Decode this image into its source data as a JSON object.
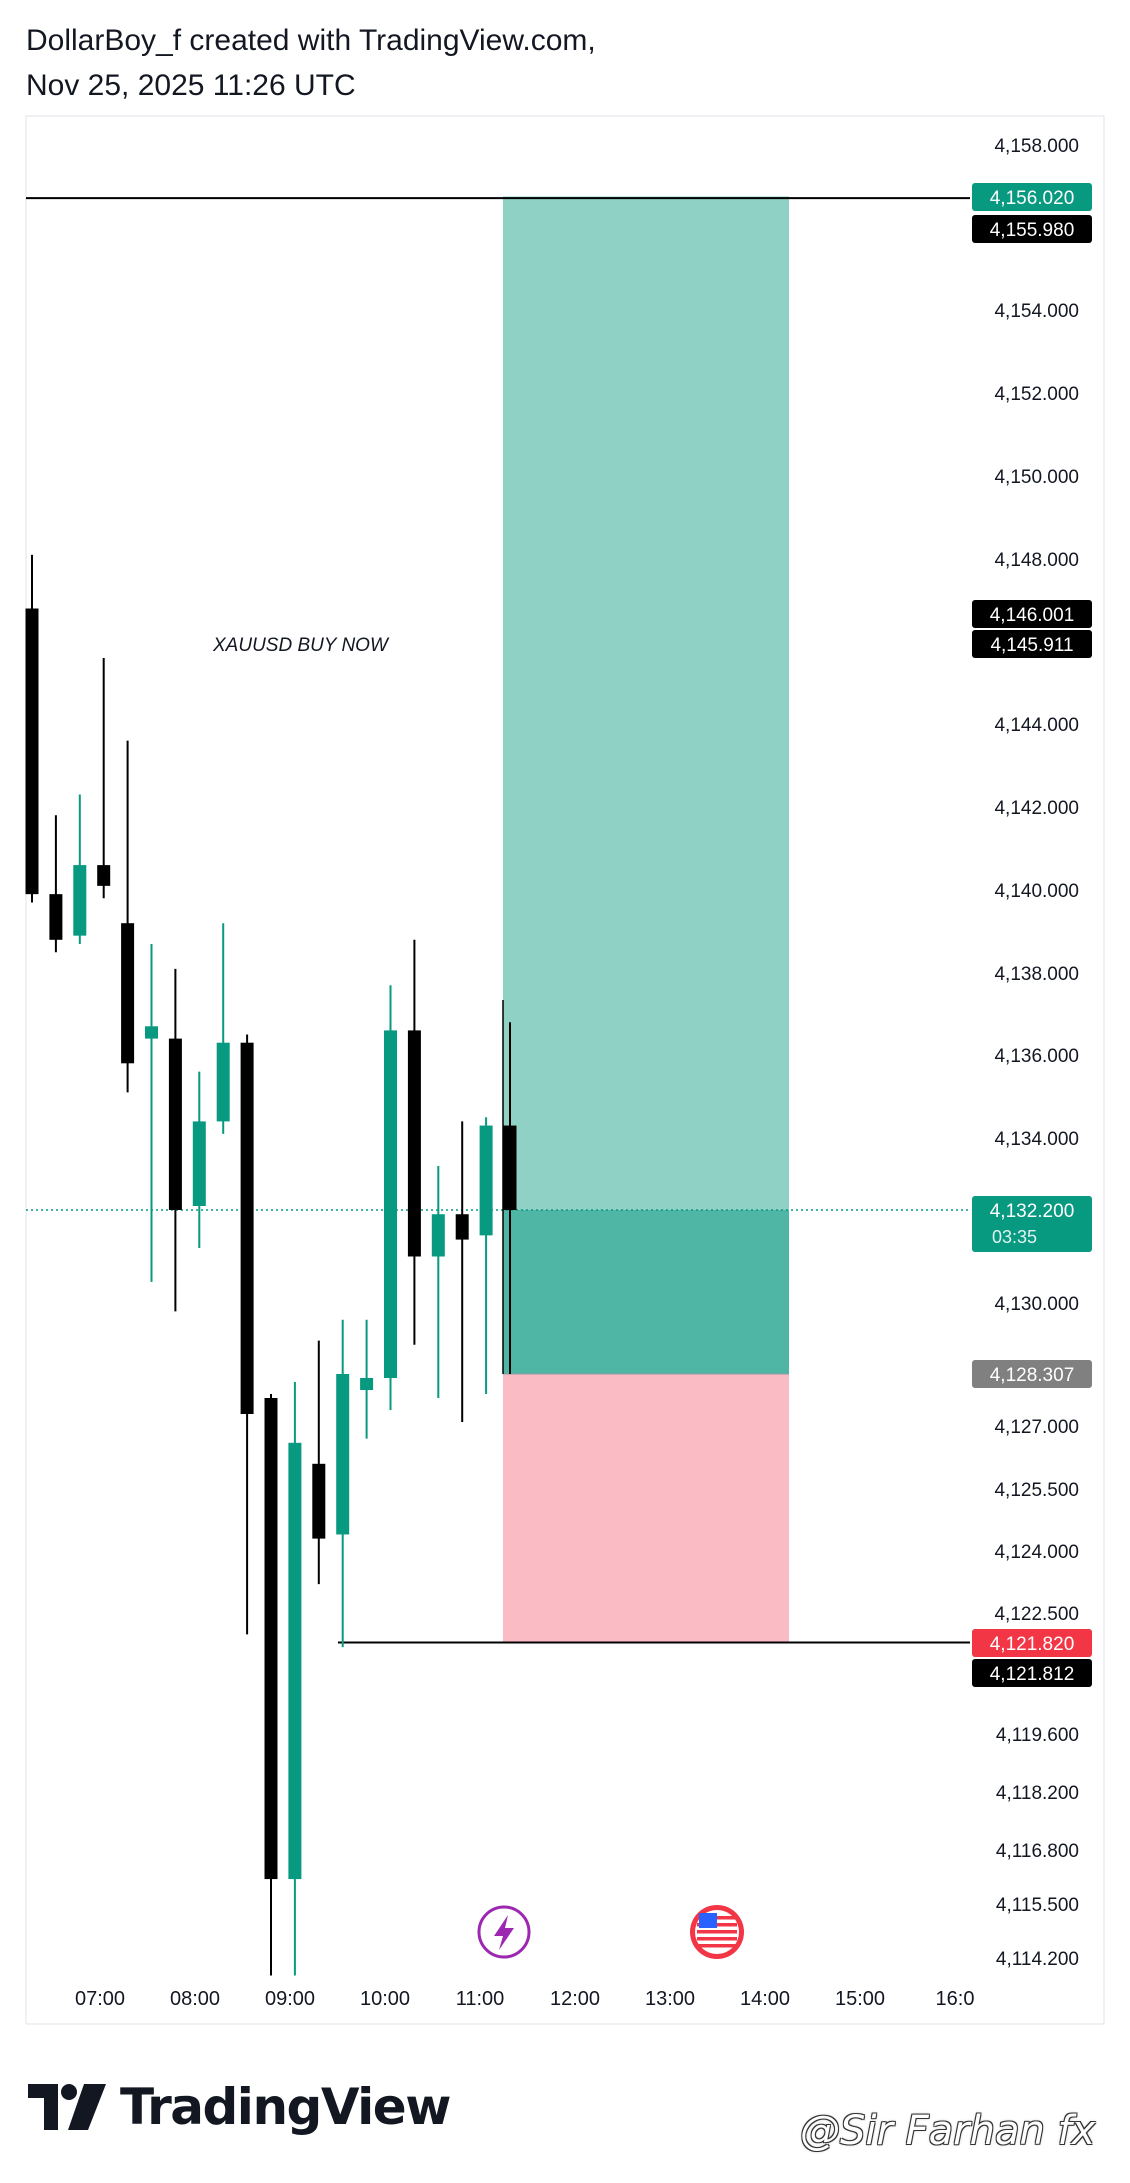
{
  "header": {
    "line1": "DollarBoy_f created with TradingView.com,",
    "line2": "Nov 25, 2025 11:26 UTC"
  },
  "footer": {
    "brand": "TradingView",
    "watermark": "@Sir Farhan fx"
  },
  "colors": {
    "up": "#089981",
    "down": "#000000",
    "profit_zone": "#8fd1c4",
    "profit_zone_dark": "#4fb5a4",
    "loss_zone": "#fbbbc4",
    "price_tag_green": "#089981",
    "price_tag_red": "#f23645",
    "price_tag_gray": "#808080",
    "price_tag_black": "#000000"
  },
  "chart_data": {
    "type": "candlestick",
    "symbol_note": "XAUUSD BUY NOW",
    "y_ticks": [
      "4,158.000",
      "4,154.000",
      "4,152.000",
      "4,150.000",
      "4,148.000",
      "4,144.000",
      "4,142.000",
      "4,140.000",
      "4,138.000",
      "4,136.000",
      "4,134.000",
      "4,130.000",
      "4,127.000",
      "4,125.500",
      "4,124.000",
      "4,122.500",
      "4,119.600",
      "4,118.200",
      "4,116.800",
      "4,115.500",
      "4,114.200"
    ],
    "x_ticks": [
      "07:00",
      "08:00",
      "09:00",
      "10:00",
      "11:00",
      "12:00",
      "13:00",
      "14:00",
      "15:00",
      "16:0"
    ],
    "candles": [
      {
        "o": 4146.2,
        "h": 4148.1,
        "l": 4139.7,
        "c": 4139.9
      },
      {
        "o": 4139.9,
        "h": 4141.8,
        "l": 4138.5,
        "c": 4138.8
      },
      {
        "o": 4138.9,
        "h": 4142.3,
        "l": 4138.7,
        "c": 4140.6
      },
      {
        "o": 4140.6,
        "h": 4145.2,
        "l": 4139.8,
        "c": 4140.1
      },
      {
        "o": 4139.2,
        "h": 4143.6,
        "l": 4135.1,
        "c": 4135.8
      },
      {
        "o": 4136.4,
        "h": 4138.7,
        "l": 4130.5,
        "c": 4136.7
      },
      {
        "o": 4136.4,
        "h": 4138.1,
        "l": 4129.8,
        "c": 4132.2
      },
      {
        "o": 4132.3,
        "h": 4135.6,
        "l": 4131.3,
        "c": 4134.4
      },
      {
        "o": 4134.4,
        "h": 4139.2,
        "l": 4134.1,
        "c": 4136.3
      },
      {
        "o": 4136.3,
        "h": 4136.5,
        "l": 4122.0,
        "c": 4127.3
      },
      {
        "o": 4127.7,
        "h": 4127.8,
        "l": 4113.7,
        "c": 4116.1
      },
      {
        "o": 4116.1,
        "h": 4128.1,
        "l": 4113.7,
        "c": 4126.6
      },
      {
        "o": 4126.1,
        "h": 4129.1,
        "l": 4123.2,
        "c": 4124.3
      },
      {
        "o": 4124.4,
        "h": 4129.6,
        "l": 4121.7,
        "c": 4128.3
      },
      {
        "o": 4127.9,
        "h": 4129.6,
        "l": 4126.7,
        "c": 4128.2
      },
      {
        "o": 4128.2,
        "h": 4137.7,
        "l": 4127.4,
        "c": 4136.6
      },
      {
        "o": 4136.6,
        "h": 4138.8,
        "l": 4129.0,
        "c": 4131.1
      },
      {
        "o": 4131.1,
        "h": 4133.3,
        "l": 4127.7,
        "c": 4132.1
      },
      {
        "o": 4132.1,
        "h": 4134.4,
        "l": 4127.1,
        "c": 4131.5
      },
      {
        "o": 4131.6,
        "h": 4134.5,
        "l": 4127.8,
        "c": 4134.3
      },
      {
        "o": 4134.3,
        "h": 4136.8,
        "l": 4128.3,
        "c": 4132.2
      }
    ],
    "position": {
      "side": "long",
      "take_profit": 4156.02,
      "entry": 4132.2,
      "stop_loss": 4121.82
    },
    "horizontal_lines": [
      4155.98,
      4121.812
    ],
    "price_labels": [
      {
        "value": "4,156.020",
        "style": "green"
      },
      {
        "value": "4,155.980",
        "style": "black"
      },
      {
        "value": "4,146.001",
        "style": "black"
      },
      {
        "value": "4,145.911",
        "style": "black"
      },
      {
        "value": "4,132.200",
        "sub": "03:35",
        "style": "green"
      },
      {
        "value": "4,128.307",
        "style": "gray"
      },
      {
        "value": "4,121.820",
        "style": "red"
      },
      {
        "value": "4,121.812",
        "style": "black"
      }
    ],
    "events": [
      "lightning-icon",
      "us-flag-icon"
    ],
    "last_price": 4132.2
  }
}
